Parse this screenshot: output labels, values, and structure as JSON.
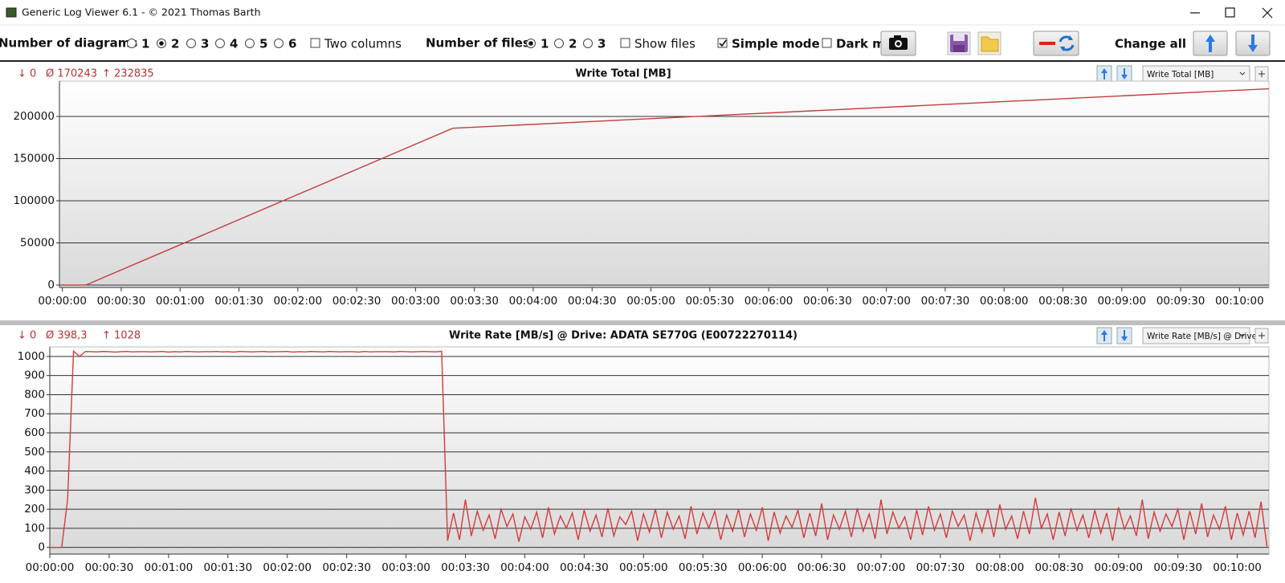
{
  "window": {
    "title": "Generic Log Viewer 6.1 - © 2021 Thomas Barth"
  },
  "toolbar": {
    "diagrams": {
      "label": "Number of diagrams",
      "options": [
        "1",
        "2",
        "3",
        "4",
        "5",
        "6"
      ],
      "selected": 1
    },
    "two_columns": {
      "label": "Two columns",
      "checked": false
    },
    "files": {
      "label": "Number of files",
      "options": [
        "1",
        "2",
        "3"
      ],
      "selected": 0
    },
    "show_files": {
      "label": "Show files",
      "checked": false
    },
    "simple_mode": {
      "label": "Simple mode",
      "checked": true
    },
    "dark_mode": {
      "label": "Dark mo",
      "checked": false
    },
    "change_all": "Change all"
  },
  "chart_data": [
    {
      "type": "line",
      "title": "Write Total [MB]",
      "selector": "Write Total [MB]",
      "stats": [
        "↓ 0",
        "Ø 170243",
        "↑ 232835"
      ],
      "x": [
        0,
        12,
        199,
        615
      ],
      "series": [
        {
          "color": "#c43c3c",
          "values": [
            0,
            0,
            186000,
            232835
          ]
        }
      ],
      "xlim": [
        -1.5,
        615
      ],
      "ylim": [
        -2900,
        241900
      ],
      "grid": true,
      "xticks": [
        {
          "value": 0,
          "label": "00:00:00"
        },
        {
          "value": 30,
          "label": "00:00:30"
        },
        {
          "value": 60,
          "label": "00:01:00"
        },
        {
          "value": 90,
          "label": "00:01:30"
        },
        {
          "value": 120,
          "label": "00:02:00"
        },
        {
          "value": 150,
          "label": "00:02:30"
        },
        {
          "value": 180,
          "label": "00:03:00"
        },
        {
          "value": 210,
          "label": "00:03:30"
        },
        {
          "value": 240,
          "label": "00:04:00"
        },
        {
          "value": 270,
          "label": "00:04:30"
        },
        {
          "value": 300,
          "label": "00:05:00"
        },
        {
          "value": 330,
          "label": "00:05:30"
        },
        {
          "value": 360,
          "label": "00:06:00"
        },
        {
          "value": 390,
          "label": "00:06:30"
        },
        {
          "value": 420,
          "label": "00:07:00"
        },
        {
          "value": 450,
          "label": "00:07:30"
        },
        {
          "value": 480,
          "label": "00:08:00"
        },
        {
          "value": 510,
          "label": "00:08:30"
        },
        {
          "value": 540,
          "label": "00:09:00"
        },
        {
          "value": 570,
          "label": "00:09:30"
        },
        {
          "value": 600,
          "label": "00:10:00"
        }
      ],
      "yticks": [
        0,
        50000,
        100000,
        150000,
        200000
      ]
    },
    {
      "type": "line",
      "title": "Write Rate [MB/s] @ Drive: ADATA SE770G (E00722270114)",
      "selector": "Write Rate [MB/s] @ Drive",
      "stats": [
        "↓ 0",
        "Ø 398,3",
        "↑ 1028"
      ],
      "x": [
        0,
        3,
        6,
        9,
        12,
        15,
        18,
        21,
        24,
        27,
        30,
        33,
        36,
        39,
        42,
        45,
        48,
        51,
        54,
        57,
        60,
        63,
        66,
        69,
        72,
        75,
        78,
        81,
        84,
        87,
        90,
        93,
        96,
        99,
        102,
        105,
        108,
        111,
        114,
        117,
        120,
        123,
        126,
        129,
        132,
        135,
        138,
        141,
        144,
        147,
        150,
        153,
        156,
        159,
        162,
        165,
        168,
        171,
        174,
        177,
        180,
        183,
        186,
        189,
        192,
        195,
        198,
        201,
        204,
        207,
        210,
        213,
        216,
        219,
        222,
        225,
        228,
        231,
        234,
        237,
        240,
        243,
        246,
        249,
        252,
        255,
        258,
        261,
        264,
        267,
        270,
        273,
        276,
        279,
        282,
        285,
        288,
        291,
        294,
        297,
        300,
        303,
        306,
        309,
        312,
        315,
        318,
        321,
        324,
        327,
        330,
        333,
        336,
        339,
        342,
        345,
        348,
        351,
        354,
        357,
        360,
        363,
        366,
        369,
        372,
        375,
        378,
        381,
        384,
        387,
        390,
        393,
        396,
        399,
        402,
        405,
        408,
        411,
        414,
        417,
        420,
        423,
        426,
        429,
        432,
        435,
        438,
        441,
        444,
        447,
        450,
        453,
        456,
        459,
        462,
        465,
        468,
        471,
        474,
        477,
        480,
        483,
        486,
        489,
        492,
        495,
        498,
        501,
        504,
        507,
        510,
        513,
        516,
        519,
        522,
        525,
        528,
        531,
        534,
        537,
        540,
        543,
        546,
        549,
        552,
        555,
        558,
        561,
        564,
        567,
        570,
        573,
        576,
        579,
        582,
        585,
        588,
        591,
        594,
        597,
        600,
        603,
        606,
        609,
        612,
        615
      ],
      "series": [
        {
          "color": "#d63a3a",
          "values": [
            0,
            0,
            0,
            250,
            1028,
            1000,
            1026,
            1025,
            1024,
            1026,
            1025,
            1023,
            1025,
            1026,
            1024,
            1025,
            1025,
            1024,
            1025,
            1026,
            1023,
            1025,
            1024,
            1026,
            1025,
            1024,
            1025,
            1025,
            1026,
            1024,
            1025,
            1023,
            1026,
            1025,
            1024,
            1025,
            1026,
            1024,
            1025,
            1025,
            1026,
            1023,
            1025,
            1024,
            1026,
            1025,
            1024,
            1026,
            1025,
            1024,
            1025,
            1025,
            1023,
            1026,
            1024,
            1025,
            1025,
            1025,
            1024,
            1026,
            1025,
            1024,
            1025,
            1026,
            1025,
            1024,
            1027,
            35,
            180,
            40,
            250,
            60,
            190,
            90,
            170,
            45,
            200,
            110,
            175,
            30,
            160,
            95,
            185,
            50,
            210,
            70,
            165,
            100,
            180,
            40,
            195,
            85,
            170,
            55,
            205,
            60,
            160,
            120,
            190,
            35,
            175,
            80,
            200,
            50,
            185,
            95,
            165,
            45,
            215,
            70,
            180,
            100,
            190,
            40,
            170,
            85,
            200,
            55,
            175,
            90,
            210,
            35,
            185,
            75,
            165,
            105,
            195,
            50,
            180,
            60,
            230,
            40,
            170,
            95,
            190,
            55,
            205,
            85,
            175,
            45,
            250,
            70,
            185,
            100,
            160,
            40,
            195,
            65,
            215,
            90,
            175,
            50,
            190,
            110,
            170,
            35,
            180,
            80,
            200,
            55,
            225,
            95,
            165,
            45,
            190,
            70,
            260,
            100,
            175,
            40,
            185,
            60,
            205,
            90,
            170,
            50,
            195,
            75,
            180,
            35,
            210,
            95,
            165,
            60,
            250,
            45,
            185,
            85,
            175,
            110,
            200,
            40,
            190,
            70,
            230,
            55,
            170,
            95,
            215,
            40,
            180,
            65,
            190,
            50,
            240,
            5
          ]
        }
      ],
      "xlim": [
        0,
        616
      ],
      "ylim": [
        -35,
        1050
      ],
      "grid": true,
      "xticks": [
        {
          "value": 0,
          "label": "00:00:00"
        },
        {
          "value": 30,
          "label": "00:00:30"
        },
        {
          "value": 60,
          "label": "00:01:00"
        },
        {
          "value": 90,
          "label": "00:01:30"
        },
        {
          "value": 120,
          "label": "00:02:00"
        },
        {
          "value": 150,
          "label": "00:02:30"
        },
        {
          "value": 180,
          "label": "00:03:00"
        },
        {
          "value": 210,
          "label": "00:03:30"
        },
        {
          "value": 240,
          "label": "00:04:00"
        },
        {
          "value": 270,
          "label": "00:04:30"
        },
        {
          "value": 300,
          "label": "00:05:00"
        },
        {
          "value": 330,
          "label": "00:05:30"
        },
        {
          "value": 360,
          "label": "00:06:00"
        },
        {
          "value": 390,
          "label": "00:06:30"
        },
        {
          "value": 420,
          "label": "00:07:00"
        },
        {
          "value": 450,
          "label": "00:07:30"
        },
        {
          "value": 480,
          "label": "00:08:00"
        },
        {
          "value": 510,
          "label": "00:08:30"
        },
        {
          "value": 540,
          "label": "00:09:00"
        },
        {
          "value": 570,
          "label": "00:09:30"
        },
        {
          "value": 600,
          "label": "00:10:00"
        }
      ],
      "yticks": [
        0,
        100,
        200,
        300,
        400,
        500,
        600,
        700,
        800,
        900,
        1000
      ]
    }
  ]
}
